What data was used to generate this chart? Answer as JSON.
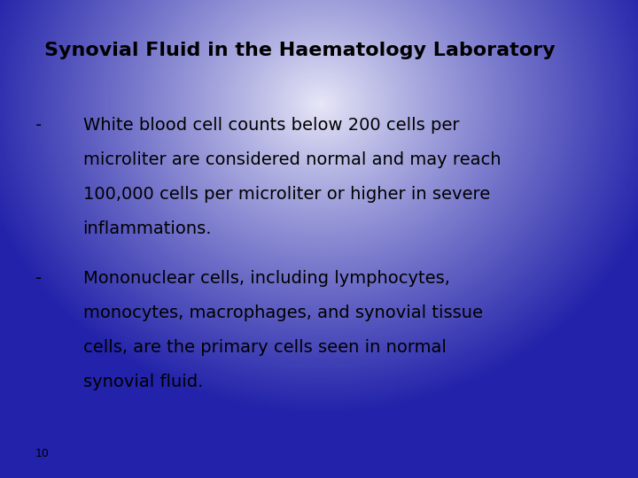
{
  "title": "Synovial Fluid in the Haematology Laboratory",
  "bullet1_dash": "-",
  "bullet1_lines": [
    "White blood cell counts below 200 cells per",
    "microliter are considered normal and may reach",
    "100,000 cells per microliter or higher in severe",
    "inflammations."
  ],
  "bullet2_dash": "-",
  "bullet2_lines": [
    "Mononuclear cells, including lymphocytes,",
    "monocytes, macrophages, and synovial tissue",
    "cells, are the primary cells seen in normal",
    "synovial fluid."
  ],
  "page_number": "10",
  "bg_outer_color": "#2222aa",
  "bg_inner_color": "#e8e8f8",
  "title_fontsize": 16,
  "body_fontsize": 14,
  "page_fontsize": 9,
  "text_color": "#000000",
  "figsize": [
    7.2,
    5.4
  ],
  "dpi": 100
}
